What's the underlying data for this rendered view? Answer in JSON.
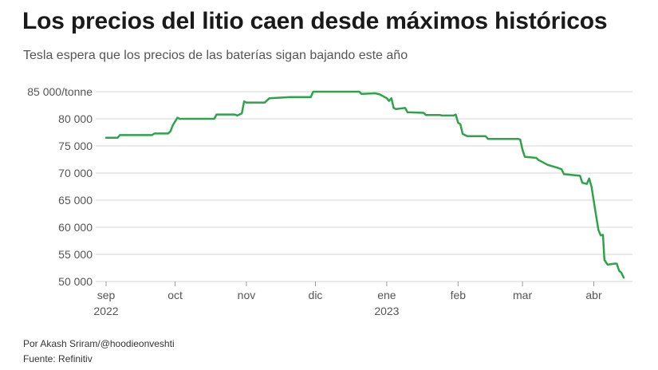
{
  "chart_data": {
    "type": "line",
    "title": "Los precios del litio caen desde máximos históricos",
    "subtitle": "Tesla espera que los precios de las baterías sigan bajando este año",
    "ylabel": "",
    "xlabel": "",
    "ylim": [
      50000,
      85000
    ],
    "yticks": [
      {
        "value": 85000,
        "label": "85 000/tonne"
      },
      {
        "value": 80000,
        "label": "80 000"
      },
      {
        "value": 75000,
        "label": "75 000"
      },
      {
        "value": 70000,
        "label": "70 000"
      },
      {
        "value": 65000,
        "label": "65 000"
      },
      {
        "value": 60000,
        "label": "60 000"
      },
      {
        "value": 55000,
        "label": "55 000"
      },
      {
        "value": 50000,
        "label": "50 000"
      }
    ],
    "xlim": [
      0,
      225
    ],
    "xticks": [
      {
        "day": 0,
        "label": "sep",
        "sublabel": "2022"
      },
      {
        "day": 30,
        "label": "oct",
        "sublabel": ""
      },
      {
        "day": 61,
        "label": "nov",
        "sublabel": ""
      },
      {
        "day": 91,
        "label": "dic",
        "sublabel": ""
      },
      {
        "day": 122,
        "label": "ene",
        "sublabel": "2023"
      },
      {
        "day": 153,
        "label": "feb",
        "sublabel": ""
      },
      {
        "day": 181,
        "label": "mar",
        "sublabel": ""
      },
      {
        "day": 212,
        "label": "abr",
        "sublabel": ""
      }
    ],
    "series": [
      {
        "name": "Litio",
        "color": "#2fa34a",
        "x_unit": "days since 1 Sep 2022",
        "points": [
          [
            0,
            76500
          ],
          [
            5,
            76500
          ],
          [
            6,
            77000
          ],
          [
            20,
            77000
          ],
          [
            21,
            77300
          ],
          [
            27,
            77300
          ],
          [
            28,
            77700
          ],
          [
            29,
            78800
          ],
          [
            31,
            80200
          ],
          [
            32,
            80000
          ],
          [
            47,
            80000
          ],
          [
            48,
            80800
          ],
          [
            56,
            80800
          ],
          [
            57,
            80600
          ],
          [
            59,
            81000
          ],
          [
            60,
            83200
          ],
          [
            61,
            83000
          ],
          [
            69,
            83000
          ],
          [
            71,
            83800
          ],
          [
            80,
            84000
          ],
          [
            81,
            84000
          ],
          [
            89,
            84000
          ],
          [
            90,
            85000
          ],
          [
            110,
            85000
          ],
          [
            111,
            84600
          ],
          [
            117,
            84700
          ],
          [
            119,
            84500
          ],
          [
            122,
            83800
          ],
          [
            123,
            83300
          ],
          [
            124,
            83800
          ],
          [
            125,
            82000
          ],
          [
            126,
            81800
          ],
          [
            130,
            82000
          ],
          [
            131,
            81200
          ],
          [
            138,
            81100
          ],
          [
            139,
            80700
          ],
          [
            145,
            80700
          ],
          [
            146,
            80600
          ],
          [
            151,
            80600
          ],
          [
            152,
            80800
          ],
          [
            153,
            79300
          ],
          [
            154,
            79000
          ],
          [
            155,
            77200
          ],
          [
            157,
            76800
          ],
          [
            165,
            76800
          ],
          [
            166,
            76300
          ],
          [
            179,
            76300
          ],
          [
            180,
            76200
          ],
          [
            181,
            74300
          ],
          [
            182,
            73000
          ],
          [
            187,
            72800
          ],
          [
            188,
            72400
          ],
          [
            192,
            71500
          ],
          [
            196,
            71000
          ],
          [
            198,
            70700
          ],
          [
            199,
            69800
          ],
          [
            206,
            69500
          ],
          [
            207,
            68200
          ],
          [
            209,
            68000
          ],
          [
            210,
            69000
          ],
          [
            211,
            67500
          ],
          [
            212,
            64800
          ],
          [
            214,
            59500
          ],
          [
            215,
            58500
          ],
          [
            216,
            58600
          ],
          [
            216.6,
            54000
          ],
          [
            218,
            53100
          ],
          [
            221,
            53300
          ],
          [
            222,
            53300
          ],
          [
            223,
            52000
          ],
          [
            224,
            51600
          ],
          [
            225,
            50700
          ]
        ]
      }
    ]
  },
  "footer": {
    "credit": "Por Akash Sriram/@hoodieonveshti",
    "source": "Fuente: Refinitiv"
  }
}
